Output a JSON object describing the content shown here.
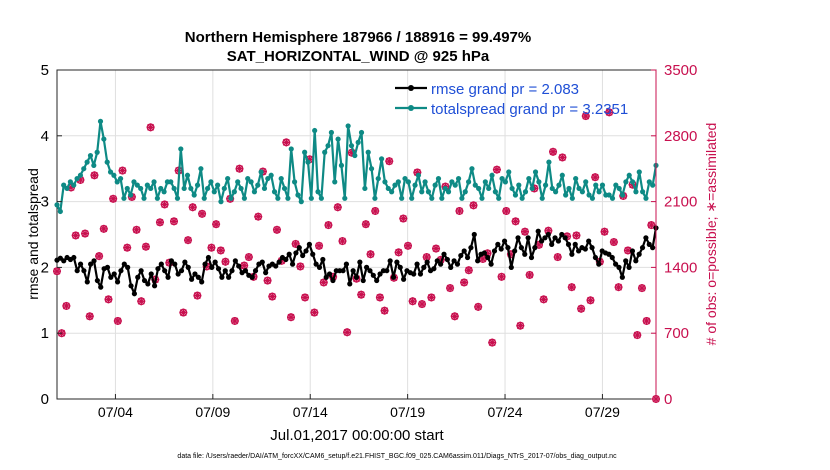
{
  "chart_data": {
    "type": "line",
    "title": "Northern Hemisphere 187966 / 188916 = 99.497%",
    "subtitle": "SAT_HORIZONTAL_WIND @ 925 hPa",
    "xlabel": "Jul.01,2017 00:00:00 start",
    "ylabel": "rmse and totalspread",
    "y2label": "# of obs: o=possible; ∗=assimilated",
    "footnote": "data file: /Users/raeder/DAI/ATM_forcXX/CAM6_setup/f.e21.FHIST_BGC.f09_025.CAM6assim.011/Diags_NTrS_2017-07/obs_diag_output.nc",
    "xlim": [
      1.0,
      31.75
    ],
    "ylim": [
      0,
      5
    ],
    "y2lim": [
      0,
      3500
    ],
    "x_ticks": [
      {
        "value": 4,
        "label": "07/04"
      },
      {
        "value": 9,
        "label": "07/09"
      },
      {
        "value": 14,
        "label": "07/14"
      },
      {
        "value": 19,
        "label": "07/19"
      },
      {
        "value": 24,
        "label": "07/24"
      },
      {
        "value": 29,
        "label": "07/29"
      }
    ],
    "y_ticks": [
      0,
      1,
      2,
      3,
      4,
      5
    ],
    "y2_ticks": [
      0,
      700,
      1400,
      2100,
      2800,
      3500
    ],
    "grid": true,
    "legend_position": "top-right",
    "series": [
      {
        "name": "rmse grand pr = 2.083",
        "color": "#000000",
        "axis": "left",
        "marker": "circle",
        "values": [
          2.11,
          2.14,
          2.1,
          2.15,
          2.12,
          2.15,
          1.95,
          2.05,
          1.95,
          1.78,
          2.05,
          2.1,
          1.8,
          1.7,
          1.98,
          2.0,
          1.85,
          1.9,
          1.78,
          1.95,
          2.05,
          2.0,
          1.72,
          1.6,
          1.85,
          1.95,
          1.8,
          1.75,
          1.9,
          1.72,
          1.98,
          2.05,
          1.95,
          1.85,
          2.1,
          2.05,
          1.9,
          1.95,
          2.08,
          2.0,
          1.82,
          1.9,
          1.85,
          1.78,
          2.05,
          2.15,
          2.0,
          2.08,
          1.98,
          1.85,
          1.95,
          1.85,
          1.95,
          2.1,
          2.02,
          1.92,
          1.95,
          1.88,
          1.85,
          1.95,
          2.05,
          2.08,
          1.92,
          2.02,
          2.05,
          2.02,
          2.08,
          2.15,
          2.12,
          2.2,
          2.05,
          2.22,
          2.3,
          2.18,
          2.25,
          2.35,
          2.2,
          2.05,
          2.0,
          2.12,
          1.85,
          1.9,
          1.8,
          1.95,
          1.95,
          1.95,
          2.05,
          1.75,
          1.95,
          1.85,
          2.08,
          1.8,
          2.0,
          1.95,
          1.88,
          1.8,
          1.9,
          1.95,
          1.95,
          2.1,
          1.85,
          2.08,
          2.0,
          1.82,
          1.95,
          1.92,
          1.9,
          2.05,
          1.9,
          2.0,
          2.08,
          1.95,
          1.98,
          2.1,
          2.05,
          2.2,
          2.12,
          2.0,
          2.1,
          2.05,
          2.18,
          2.25,
          2.15,
          2.3,
          2.5,
          2.1,
          2.2,
          2.22,
          2.15,
          2.05,
          2.25,
          2.35,
          2.28,
          2.4,
          2.3,
          2.0,
          2.25,
          2.45,
          2.3,
          2.2,
          2.45,
          2.15,
          2.3,
          2.55,
          2.4,
          2.45,
          2.5,
          2.35,
          2.45,
          2.4,
          2.5,
          2.45,
          2.35,
          2.2,
          2.35,
          2.25,
          2.3,
          2.28,
          2.4,
          2.3,
          2.15,
          2.05,
          2.25,
          2.22,
          2.2,
          2.15,
          2.05,
          2.0,
          1.85,
          2.1,
          2.0,
          2.25,
          2.1,
          2.2,
          2.3,
          2.45,
          2.35,
          2.3,
          2.6
        ]
      },
      {
        "name": "totalspread grand pr = 3.2351",
        "color": "#0e8a85",
        "axis": "left",
        "marker": "circle",
        "values": [
          2.95,
          2.85,
          3.25,
          3.2,
          3.3,
          3.25,
          3.35,
          3.4,
          3.5,
          3.6,
          3.7,
          3.55,
          3.75,
          4.22,
          3.95,
          3.6,
          3.45,
          3.4,
          3.3,
          3.35,
          3.05,
          3.2,
          3.1,
          3.3,
          3.25,
          3.2,
          3.05,
          3.25,
          3.2,
          3.3,
          3.05,
          3.2,
          3.15,
          3.3,
          3.3,
          3.2,
          3.05,
          3.8,
          3.2,
          3.4,
          3.2,
          3.1,
          3.25,
          3.5,
          3.05,
          3.2,
          3.3,
          3.15,
          3.25,
          3.0,
          3.2,
          3.35,
          3.05,
          3.15,
          3.3,
          3.2,
          3.05,
          3.35,
          3.3,
          3.15,
          3.25,
          3.45,
          3.2,
          3.35,
          3.4,
          3.15,
          3.05,
          3.35,
          3.2,
          3.05,
          3.8,
          3.3,
          3.1,
          3.0,
          3.75,
          3.6,
          3.05,
          4.08,
          3.15,
          3.05,
          3.75,
          3.85,
          4.05,
          3.3,
          3.95,
          3.55,
          3.05,
          4.15,
          3.85,
          3.7,
          3.9,
          4.05,
          3.2,
          3.75,
          3.5,
          3.05,
          3.35,
          3.65,
          3.3,
          3.2,
          3.15,
          3.25,
          3.3,
          3.05,
          3.35,
          3.3,
          3.05,
          3.25,
          3.4,
          3.15,
          3.3,
          3.15,
          3.05,
          3.25,
          3.35,
          3.05,
          3.2,
          3.15,
          3.3,
          3.25,
          3.35,
          3.05,
          3.15,
          3.3,
          3.5,
          3.25,
          3.2,
          3.05,
          3.3,
          3.2,
          3.4,
          3.15,
          3.05,
          3.35,
          3.3,
          3.45,
          3.2,
          3.1,
          3.25,
          3.05,
          3.15,
          3.35,
          3.2,
          3.45,
          3.3,
          3.05,
          3.25,
          3.6,
          3.2,
          3.15,
          3.25,
          3.4,
          3.1,
          3.2,
          3.05,
          3.35,
          3.2,
          3.15,
          3.3,
          3.1,
          3.05,
          3.25,
          3.15,
          3.25,
          3.1,
          3.1,
          3.05,
          3.25,
          3.2,
          3.1,
          3.3,
          3.4,
          3.3,
          3.15,
          3.45,
          3.15,
          3.05,
          3.3,
          3.25,
          3.55
        ]
      }
    ],
    "obs_counts": {
      "name": "# of obs",
      "color": "#c8104f",
      "axis": "right",
      "values": [
        1360,
        700,
        990,
        2250,
        1740,
        2330,
        1760,
        880,
        2380,
        1520,
        1810,
        1060,
        2130,
        830,
        2430,
        1610,
        2150,
        1800,
        1040,
        1620,
        2890,
        1270,
        1880,
        2070,
        1450,
        1890,
        2430,
        920,
        1690,
        2040,
        1100,
        1970,
        1410,
        1610,
        1860,
        1580,
        1460,
        2130,
        830,
        2450,
        1420,
        1510,
        1300,
        1940,
        2420,
        1260,
        1090,
        1800,
        1470,
        2730,
        870,
        1650,
        1410,
        1080,
        2550,
        920,
        1630,
        1240,
        1850,
        1300,
        2040,
        1680,
        710,
        2620,
        1280,
        1110,
        1860,
        1540,
        2000,
        1080,
        940,
        2530,
        1290,
        1560,
        1920,
        1630,
        1040,
        2410,
        1010,
        1510,
        1080,
        1600,
        1480,
        2260,
        1180,
        880,
        2000,
        1240,
        1370,
        2060,
        980,
        1490,
        1550,
        600,
        2440,
        1300,
        2000,
        1540,
        1890,
        780,
        1780,
        1320,
        2240,
        1640,
        1060,
        1790,
        2630,
        1510,
        2570,
        1730,
        1190,
        1740,
        960,
        3010,
        1050,
        2360,
        1460,
        1780,
        3050,
        1670,
        1190,
        2160,
        1580,
        2280,
        680,
        1180,
        830,
        1850,
        0
      ]
    }
  }
}
